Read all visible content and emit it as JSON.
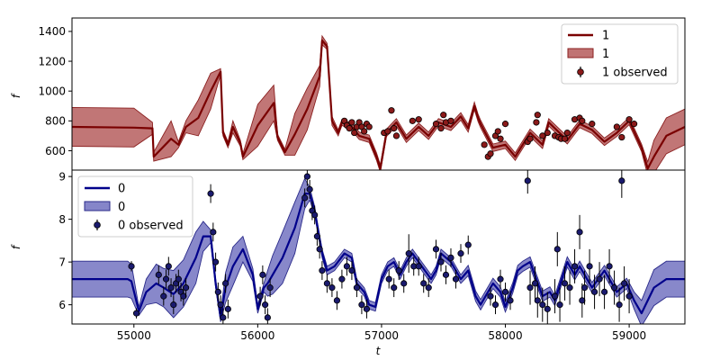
{
  "chart_data": [
    {
      "type": "line",
      "panel": "top",
      "xlabel": "",
      "ylabel": "f",
      "xlim": [
        54500,
        59450
      ],
      "ylim": [
        470,
        1490
      ],
      "yticks": [
        600,
        800,
        1000,
        1200,
        1400
      ],
      "grid": false,
      "legend_position": "top-right",
      "colors": {
        "line": "#7a0000",
        "band": "#b05050",
        "band_edge": "#8b2020",
        "marker": "#8b1a1a"
      },
      "legend": {
        "line": "1",
        "band": "1",
        "observed": "1 observed"
      },
      "model": {
        "x": [
          54500,
          55000,
          55150,
          55160,
          55300,
          55360,
          55420,
          55520,
          55620,
          55700,
          55720,
          55760,
          55800,
          55860,
          55880,
          56000,
          56130,
          56160,
          56220,
          56300,
          56400,
          56500,
          56520,
          56560,
          56600,
          56650,
          56680,
          56760,
          56820,
          56900,
          56960,
          56990,
          57040,
          57120,
          57200,
          57300,
          57380,
          57460,
          57560,
          57640,
          57700,
          57750,
          57780,
          57800,
          57900,
          58000,
          58080,
          58200,
          58300,
          58350,
          58500,
          58600,
          58700,
          58800,
          58900,
          59000,
          59100,
          59150,
          59200,
          59300,
          59450
        ],
        "y": [
          760,
          755,
          750,
          560,
          680,
          640,
          760,
          820,
          1000,
          1130,
          720,
          640,
          760,
          650,
          560,
          770,
          920,
          690,
          590,
          710,
          880,
          1100,
          1340,
          1300,
          800,
          720,
          790,
          760,
          700,
          680,
          560,
          480,
          720,
          790,
          680,
          760,
          700,
          790,
          760,
          830,
          750,
          900,
          820,
          780,
          620,
          640,
          560,
          720,
          640,
          790,
          670,
          780,
          740,
          660,
          720,
          800,
          620,
          480,
          560,
          700,
          760
        ],
        "band": [
          130,
          130,
          40,
          30,
          120,
          20,
          40,
          120,
          120,
          20,
          20,
          20,
          40,
          20,
          20,
          140,
          120,
          20,
          20,
          140,
          140,
          70,
          30,
          20,
          30,
          20,
          20,
          25,
          25,
          25,
          25,
          25,
          25,
          25,
          25,
          25,
          25,
          25,
          25,
          25,
          25,
          25,
          25,
          25,
          25,
          25,
          25,
          25,
          25,
          25,
          25,
          25,
          25,
          25,
          25,
          25,
          25,
          45,
          110,
          120,
          120
        ]
      },
      "observed": {
        "x": [
          56700,
          56720,
          56740,
          56760,
          56780,
          56800,
          56820,
          56840,
          56860,
          56880,
          56900,
          57020,
          57050,
          57080,
          57100,
          57120,
          57250,
          57300,
          57440,
          57480,
          57500,
          57520,
          57560,
          57830,
          57860,
          57880,
          57920,
          57940,
          57960,
          58000,
          58180,
          58200,
          58250,
          58260,
          58300,
          58340,
          58400,
          58430,
          58450,
          58480,
          58500,
          58560,
          58600,
          58620,
          58700,
          58900,
          58940,
          59000,
          59040
        ],
        "y": [
          800,
          770,
          750,
          790,
          720,
          760,
          790,
          760,
          730,
          780,
          760,
          720,
          730,
          870,
          750,
          700,
          800,
          810,
          780,
          750,
          840,
          790,
          800,
          640,
          560,
          580,
          700,
          730,
          680,
          780,
          660,
          680,
          790,
          840,
          700,
          720,
          700,
          690,
          680,
          680,
          720,
          810,
          820,
          800,
          780,
          760,
          690,
          810,
          780
        ],
        "err": [
          20,
          20,
          20,
          20,
          20,
          20,
          20,
          20,
          20,
          20,
          20,
          20,
          20,
          20,
          20,
          20,
          20,
          20,
          20,
          20,
          20,
          20,
          20,
          20,
          20,
          20,
          20,
          20,
          20,
          20,
          20,
          20,
          20,
          20,
          20,
          20,
          20,
          20,
          20,
          20,
          20,
          20,
          20,
          20,
          20,
          20,
          20,
          20,
          20
        ]
      }
    },
    {
      "type": "line",
      "panel": "bottom",
      "xlabel": "t",
      "ylabel": "f",
      "xlim": [
        54500,
        59450
      ],
      "ylim": [
        5.55,
        9.15
      ],
      "xticks": [
        55000,
        56000,
        57000,
        58000,
        59000
      ],
      "yticks": [
        6,
        7,
        8,
        9
      ],
      "grid": false,
      "legend_position": "top-left",
      "colors": {
        "line": "#00008b",
        "band": "#6666bb",
        "band_edge": "#2a2a8a",
        "marker": "#1a1a6e"
      },
      "legend": {
        "line": "0",
        "band": "0",
        "observed": "0 observed"
      },
      "model": {
        "x": [
          54500,
          54950,
          54980,
          55040,
          55100,
          55180,
          55240,
          55320,
          55400,
          55500,
          55560,
          55620,
          55660,
          55700,
          55740,
          55800,
          55880,
          55960,
          56000,
          56050,
          56080,
          56120,
          56200,
          56300,
          56380,
          56420,
          56460,
          56520,
          56560,
          56620,
          56700,
          56760,
          56800,
          56860,
          56900,
          56950,
          57000,
          57050,
          57100,
          57150,
          57200,
          57250,
          57300,
          57400,
          57440,
          57480,
          57560,
          57640,
          57700,
          57760,
          57800,
          57840,
          57900,
          57960,
          58000,
          58060,
          58100,
          58140,
          58200,
          58300,
          58360,
          58400,
          58500,
          58560,
          58600,
          58700,
          58800,
          58900,
          58980,
          59040,
          59100,
          59200,
          59300,
          59450
        ],
        "y": [
          6.6,
          6.6,
          6.55,
          5.85,
          6.3,
          6.5,
          6.4,
          6.25,
          6.5,
          7.1,
          7.6,
          7.6,
          6.5,
          5.7,
          6.4,
          6.9,
          7.3,
          6.7,
          5.9,
          6.4,
          6.5,
          6.7,
          7.1,
          7.8,
          8.6,
          8.6,
          8.2,
          7.2,
          6.8,
          6.9,
          7.2,
          7.1,
          6.5,
          6.3,
          6.0,
          5.95,
          6.6,
          6.9,
          7.0,
          6.7,
          7.0,
          7.2,
          7.0,
          6.6,
          6.8,
          7.2,
          7.0,
          6.6,
          6.8,
          6.2,
          6.0,
          6.2,
          6.5,
          6.3,
          5.95,
          6.4,
          6.8,
          6.9,
          7.0,
          6.2,
          6.3,
          6.1,
          7.0,
          6.7,
          6.9,
          6.4,
          6.8,
          6.3,
          6.5,
          6.1,
          5.8,
          6.4,
          6.6,
          6.6
        ],
        "band": [
          0.42,
          0.42,
          0.4,
          0.1,
          0.3,
          0.45,
          0.45,
          0.55,
          0.55,
          0.6,
          0.35,
          0.15,
          0.1,
          0.1,
          0.35,
          0.45,
          0.3,
          0.15,
          0.1,
          0.1,
          0.3,
          0.45,
          0.6,
          0.6,
          0.35,
          0.15,
          0.1,
          0.1,
          0.1,
          0.1,
          0.1,
          0.1,
          0.1,
          0.1,
          0.1,
          0.1,
          0.1,
          0.1,
          0.1,
          0.1,
          0.1,
          0.1,
          0.1,
          0.1,
          0.1,
          0.1,
          0.1,
          0.1,
          0.12,
          0.12,
          0.12,
          0.12,
          0.12,
          0.12,
          0.12,
          0.12,
          0.12,
          0.12,
          0.12,
          0.12,
          0.12,
          0.12,
          0.12,
          0.12,
          0.12,
          0.12,
          0.12,
          0.12,
          0.12,
          0.2,
          0.3,
          0.42,
          0.42,
          0.42
        ]
      },
      "observed": {
        "x": [
          54980,
          55020,
          55200,
          55240,
          55260,
          55280,
          55300,
          55320,
          55340,
          55360,
          55380,
          55400,
          55420,
          55620,
          55640,
          55660,
          55680,
          55700,
          55720,
          55740,
          55760,
          56020,
          56040,
          56060,
          56080,
          56100,
          56380,
          56400,
          56420,
          56440,
          56460,
          56480,
          56500,
          56520,
          56560,
          56600,
          56640,
          56680,
          56720,
          56760,
          56800,
          56840,
          56880,
          57060,
          57100,
          57140,
          57180,
          57220,
          57260,
          57300,
          57340,
          57380,
          57440,
          57480,
          57520,
          57560,
          57600,
          57640,
          57700,
          57880,
          57920,
          57960,
          58000,
          58040,
          58180,
          58200,
          58240,
          58260,
          58300,
          58340,
          58400,
          58420,
          58440,
          58480,
          58520,
          58560,
          58600,
          58620,
          58640,
          58680,
          58720,
          58760,
          58800,
          58840,
          58880,
          58920,
          58940,
          58960,
          59000
        ],
        "y": [
          6.9,
          5.8,
          6.7,
          6.2,
          6.6,
          6.9,
          6.4,
          6.0,
          6.5,
          6.6,
          6.3,
          6.2,
          6.4,
          8.6,
          7.7,
          7.0,
          6.3,
          6.0,
          5.7,
          6.5,
          5.9,
          6.2,
          6.7,
          6.0,
          5.7,
          6.4,
          8.5,
          9.0,
          8.7,
          8.2,
          8.1,
          7.6,
          7.3,
          6.8,
          6.5,
          6.4,
          6.1,
          6.6,
          6.9,
          6.8,
          6.4,
          6.0,
          5.9,
          6.6,
          6.4,
          6.8,
          6.5,
          7.2,
          6.9,
          6.9,
          6.5,
          6.4,
          7.3,
          7.0,
          6.7,
          7.1,
          6.6,
          7.2,
          7.4,
          6.2,
          6.0,
          6.6,
          6.3,
          6.1,
          8.9,
          6.4,
          6.5,
          6.1,
          6.0,
          5.9,
          6.2,
          7.3,
          6.0,
          6.5,
          6.4,
          6.9,
          7.7,
          6.1,
          6.4,
          6.9,
          6.3,
          6.6,
          6.3,
          6.9,
          6.4,
          6.0,
          8.9,
          6.5,
          6.2
        ],
        "err": [
          0.12,
          0.12,
          0.22,
          0.22,
          0.22,
          0.22,
          0.22,
          0.22,
          0.22,
          0.22,
          0.22,
          0.22,
          0.22,
          0.22,
          0.22,
          0.22,
          0.22,
          0.22,
          0.22,
          0.22,
          0.22,
          0.22,
          0.22,
          0.22,
          0.22,
          0.22,
          0.22,
          0.22,
          0.22,
          0.22,
          0.22,
          0.22,
          0.22,
          0.22,
          0.22,
          0.22,
          0.22,
          0.22,
          0.22,
          0.22,
          0.22,
          0.22,
          0.22,
          0.22,
          0.22,
          0.22,
          0.22,
          0.45,
          0.22,
          0.22,
          0.22,
          0.22,
          0.22,
          0.22,
          0.22,
          0.22,
          0.22,
          0.22,
          0.22,
          0.22,
          0.22,
          0.22,
          0.22,
          0.22,
          0.3,
          0.4,
          0.4,
          0.4,
          0.4,
          0.4,
          0.4,
          0.4,
          0.4,
          0.4,
          0.4,
          0.4,
          0.4,
          0.4,
          0.4,
          0.4,
          0.4,
          0.4,
          0.4,
          0.4,
          0.4,
          0.4,
          0.4,
          0.4,
          0.4
        ]
      }
    }
  ]
}
